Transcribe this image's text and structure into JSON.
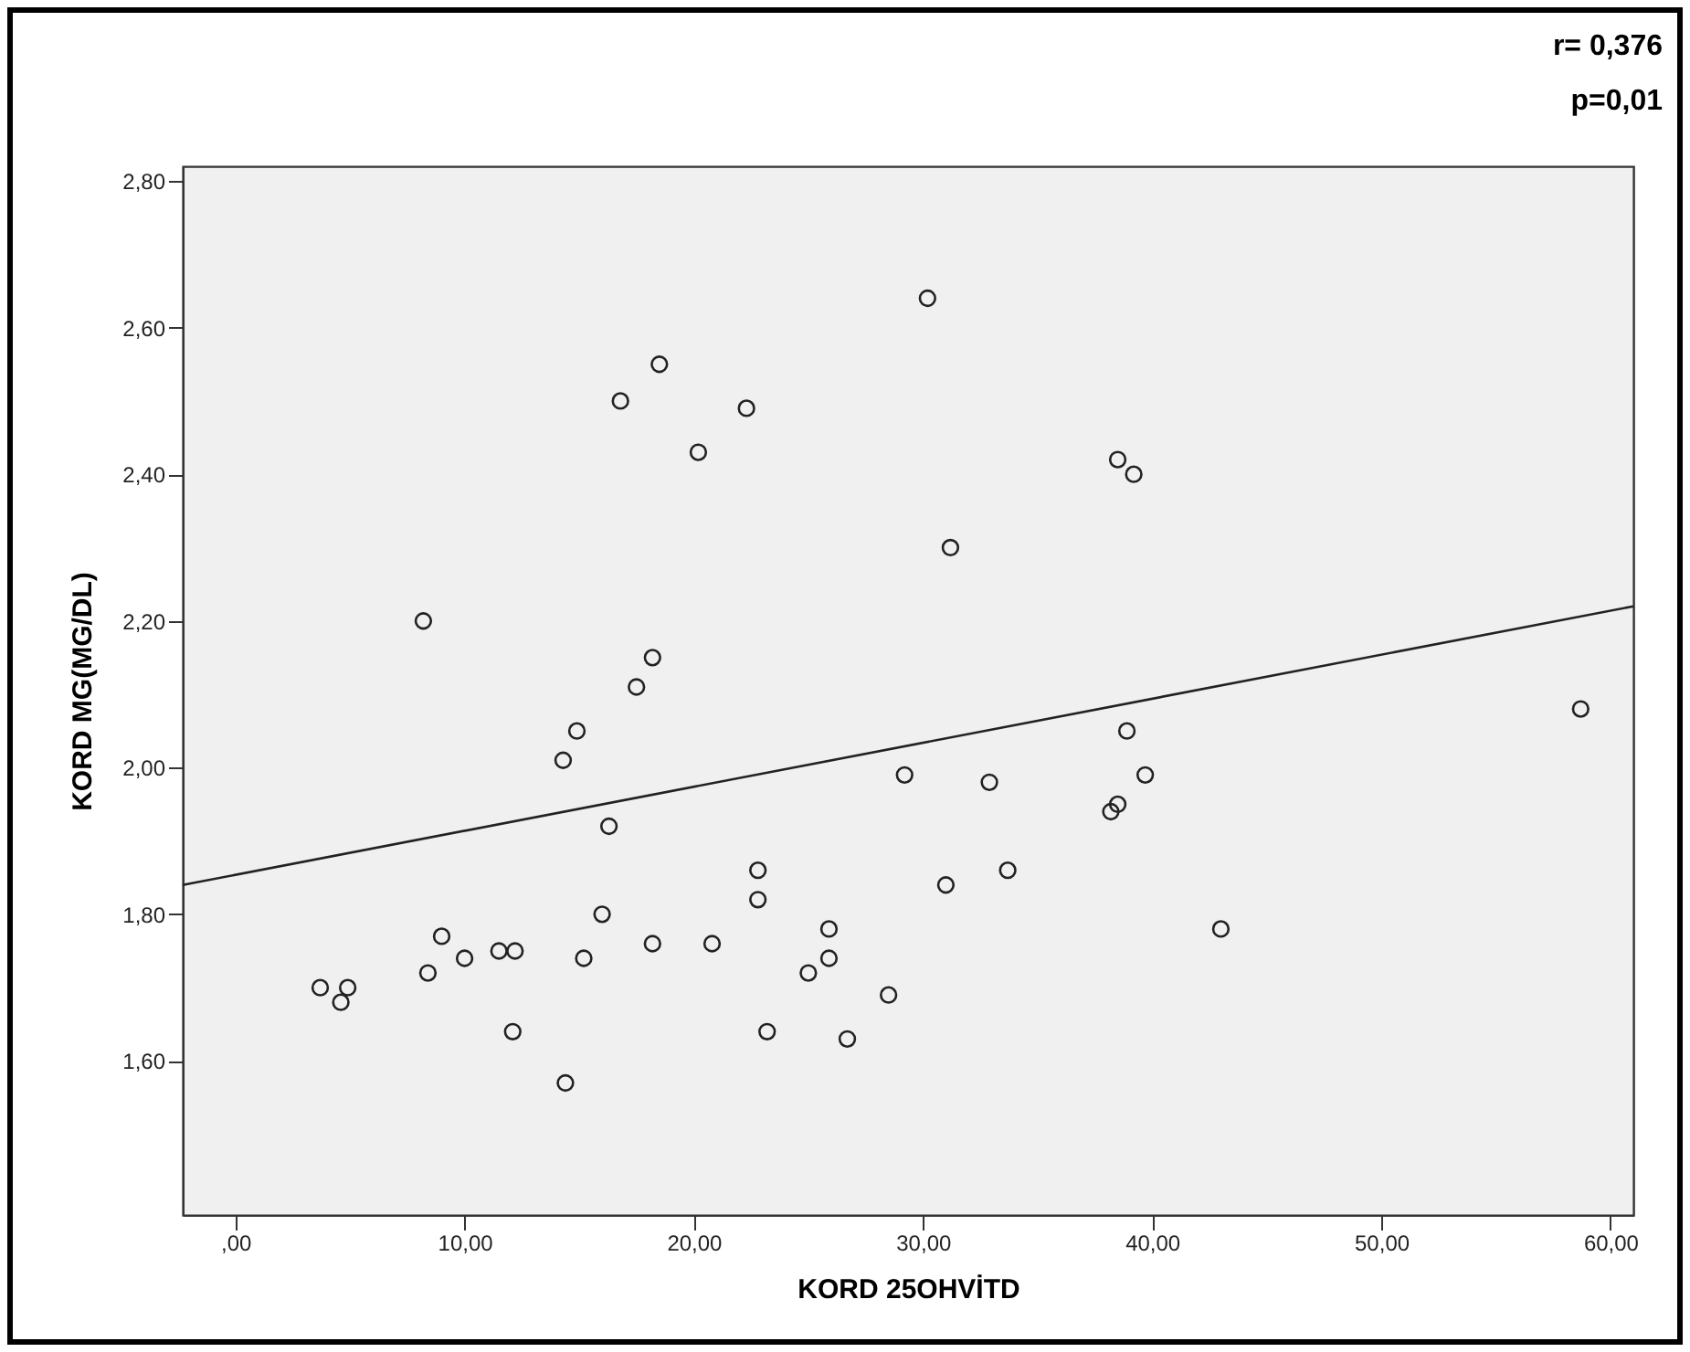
{
  "chart_data": {
    "type": "scatter",
    "xlabel": "KORD 25OHVİTD",
    "ylabel": "KORD MG(MG/DL)",
    "annotations": [
      "r= 0,376",
      "p=0,01"
    ],
    "xlim": [
      -2.3,
      61
    ],
    "ylim": [
      1.39,
      2.82
    ],
    "xticks": [
      {
        "value": 0,
        "label": ",00"
      },
      {
        "value": 10,
        "label": "10,00"
      },
      {
        "value": 20,
        "label": "20,00"
      },
      {
        "value": 30,
        "label": "30,00"
      },
      {
        "value": 40,
        "label": "40,00"
      },
      {
        "value": 50,
        "label": "50,00"
      },
      {
        "value": 60,
        "label": "60,00"
      }
    ],
    "yticks": [
      {
        "value": 1.6,
        "label": "1,60"
      },
      {
        "value": 1.8,
        "label": "1,80"
      },
      {
        "value": 2.0,
        "label": "2,00"
      },
      {
        "value": 2.2,
        "label": "2,20"
      },
      {
        "value": 2.4,
        "label": "2,40"
      },
      {
        "value": 2.6,
        "label": "2,60"
      },
      {
        "value": 2.8,
        "label": "2,80"
      }
    ],
    "grid": false,
    "series": [
      {
        "marker": "circle",
        "color": "#222222",
        "x": [
          3.7,
          4.6,
          4.9,
          8.2,
          8.4,
          9.0,
          10.0,
          11.5,
          12.2,
          12.1,
          14.3,
          14.4,
          14.9,
          15.2,
          16.0,
          16.3,
          16.8,
          17.5,
          18.2,
          18.2,
          18.5,
          20.2,
          20.8,
          22.3,
          22.8,
          22.8,
          23.2,
          25.0,
          25.9,
          25.9,
          26.7,
          28.5,
          29.2,
          30.2,
          31.0,
          31.2,
          32.9,
          33.7,
          38.2,
          38.5,
          38.5,
          38.9,
          39.2,
          39.7,
          43.0,
          58.7
        ],
        "values": [
          1.7,
          1.68,
          1.7,
          2.2,
          1.72,
          1.77,
          1.74,
          1.75,
          1.75,
          1.64,
          2.01,
          1.57,
          2.05,
          1.74,
          1.8,
          1.92,
          2.5,
          2.11,
          2.15,
          1.76,
          2.55,
          2.43,
          1.76,
          2.49,
          1.86,
          1.82,
          1.64,
          1.72,
          1.78,
          1.74,
          1.63,
          1.69,
          1.99,
          2.64,
          1.84,
          2.3,
          1.98,
          1.86,
          1.94,
          1.95,
          2.42,
          2.05,
          2.4,
          1.99,
          1.78,
          2.08
        ]
      },
      {
        "type": "line",
        "color": "#222222",
        "x": [
          -2.3,
          61
        ],
        "values": [
          1.84,
          2.22
        ]
      }
    ]
  }
}
